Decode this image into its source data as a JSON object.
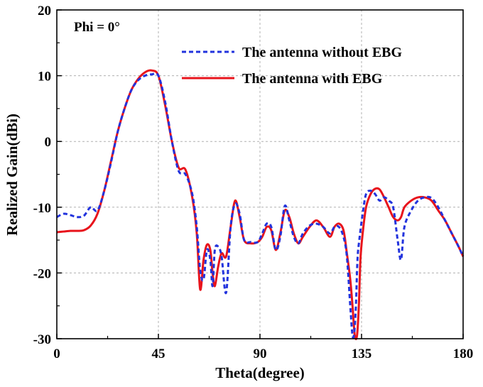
{
  "chart_data": {
    "type": "line",
    "title": "",
    "annotation": "Phi = 0°",
    "xlabel": "Theta(degree)",
    "ylabel": "Realized Gain(dBi)",
    "xlim": [
      0,
      180
    ],
    "ylim": [
      -30,
      20
    ],
    "xticks": [
      0,
      45,
      90,
      135,
      180
    ],
    "yticks": [
      -30,
      -20,
      -10,
      0,
      10,
      20
    ],
    "grid": true,
    "legend_position": "top-right",
    "series": [
      {
        "name": "The antenna without EBG",
        "style": "dashed",
        "color": "#2233dd",
        "x": [
          0,
          3,
          6,
          9,
          12,
          15,
          18,
          21,
          24,
          27,
          30,
          33,
          36,
          39,
          42,
          45,
          48,
          51,
          54,
          57,
          60,
          62,
          63.5,
          65,
          66.5,
          68,
          69,
          70,
          71.5,
          73,
          75,
          77,
          79,
          81,
          83,
          86,
          89,
          91,
          93,
          95,
          97,
          99,
          101,
          103,
          105,
          107,
          109,
          112,
          115,
          118,
          121,
          123,
          125,
          127,
          128.5,
          130,
          131,
          131.8,
          132.5,
          133.2,
          134,
          135.5,
          137,
          139,
          141,
          143,
          145,
          147,
          149,
          151,
          152.5,
          154,
          157,
          160,
          163,
          166,
          169,
          172,
          175,
          178,
          180
        ],
        "values": [
          -11.5,
          -11,
          -11.2,
          -11.5,
          -11.3,
          -10,
          -10.5,
          -7.5,
          -3.2,
          1.5,
          5,
          7.8,
          9.3,
          10,
          10.2,
          10,
          6,
          0,
          -4.5,
          -5,
          -8,
          -13,
          -19.5,
          -21,
          -16.5,
          -18,
          -22,
          -16.5,
          -16,
          -17.5,
          -23,
          -13,
          -9.5,
          -11,
          -15,
          -15.3,
          -15.3,
          -14,
          -12.5,
          -13,
          -16.5,
          -14.5,
          -9.8,
          -12,
          -14.5,
          -15.5,
          -14,
          -12.8,
          -12.5,
          -13,
          -14,
          -13,
          -13,
          -14.5,
          -17.5,
          -25,
          -29.5,
          -29,
          -25,
          -18,
          -15,
          -11,
          -8,
          -7.5,
          -8,
          -9,
          -8.5,
          -9,
          -10,
          -15,
          -18,
          -13,
          -10.5,
          -9,
          -8.5,
          -8.6,
          -10,
          -12,
          -14,
          -16,
          -17.5
        ]
      },
      {
        "name": "The antenna with EBG",
        "style": "solid",
        "color": "#e8141c",
        "x": [
          0,
          3,
          6,
          9,
          12,
          15,
          18,
          21,
          24,
          27,
          30,
          33,
          36,
          39,
          42,
          45,
          48,
          51,
          54,
          57,
          60,
          62,
          63.5,
          65,
          66.5,
          68,
          69,
          70,
          71.5,
          73,
          75,
          77,
          79,
          81,
          83,
          86,
          89,
          91,
          93,
          95,
          97,
          99,
          101,
          103,
          105,
          107,
          109,
          112,
          115,
          118,
          121,
          123,
          125,
          127,
          128.5,
          130,
          131,
          132,
          133,
          133.8,
          134.5,
          135.5,
          137,
          139,
          141,
          143,
          145,
          147,
          149,
          151,
          152.5,
          154,
          157,
          160,
          163,
          166,
          169,
          172,
          175,
          178,
          180
        ],
        "values": [
          -13.8,
          -13.7,
          -13.6,
          -13.6,
          -13.5,
          -12.8,
          -11,
          -7.5,
          -3,
          1.5,
          5,
          7.8,
          9.5,
          10.5,
          10.8,
          10,
          5.5,
          0,
          -4,
          -4.3,
          -8.5,
          -14,
          -22.5,
          -18,
          -15.7,
          -16.5,
          -20,
          -22,
          -19,
          -17,
          -17.5,
          -13,
          -9,
          -11.5,
          -15,
          -15.5,
          -15.3,
          -14.5,
          -13,
          -13.5,
          -16.5,
          -14,
          -10.5,
          -11.5,
          -14,
          -15.5,
          -14.5,
          -13,
          -12,
          -13,
          -14.5,
          -13,
          -12.5,
          -13.5,
          -17,
          -21,
          -25,
          -29.5,
          -29.5,
          -25,
          -18,
          -14,
          -10,
          -8,
          -7.2,
          -7.3,
          -8.5,
          -10,
          -11.5,
          -12,
          -11.5,
          -10,
          -9,
          -8.5,
          -8.5,
          -9,
          -10.5,
          -12,
          -14,
          -16,
          -17.5
        ]
      }
    ]
  }
}
